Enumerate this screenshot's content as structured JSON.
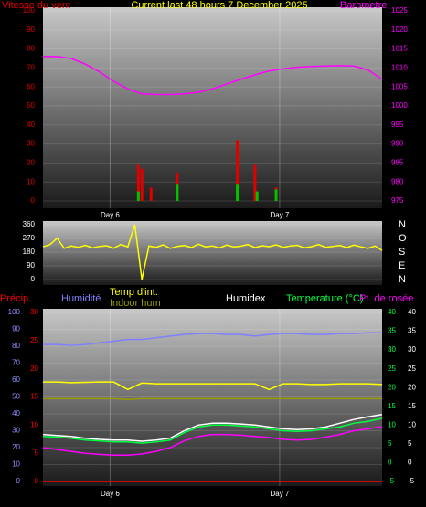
{
  "chart_data": [
    {
      "type": "combo",
      "title": "Current last 48 hours 7 December 2025",
      "y_label": "Vitesse du vent",
      "y2_label": "Barometre",
      "xlim": [
        0,
        48
      ],
      "xticks": [
        {
          "value": 9.5,
          "label": "Day 6"
        },
        {
          "value": 33.5,
          "label": "Day 7"
        }
      ],
      "ylim": [
        0,
        100
      ],
      "yticks": [
        0,
        10,
        20,
        30,
        40,
        50,
        60,
        70,
        80,
        90,
        100
      ],
      "y2lim": [
        975,
        1025
      ],
      "y2ticks": [
        975,
        980,
        985,
        990,
        995,
        1000,
        1005,
        1010,
        1015,
        1020,
        1025
      ],
      "x": [
        0,
        2,
        4,
        6,
        8,
        10,
        12,
        14,
        16,
        18,
        20,
        22,
        24,
        26,
        28,
        30,
        32,
        34,
        36,
        38,
        40,
        42,
        44,
        46,
        48
      ],
      "series": [
        {
          "type": "bar",
          "color": "#e00000",
          "x": [
            13.5,
            14,
            15.3,
            19,
            27.5,
            30,
            33
          ],
          "values": [
            19,
            17,
            7,
            15,
            32,
            19,
            7
          ]
        },
        {
          "type": "bar",
          "color": "#00c000",
          "x": [
            13.5,
            19,
            27.5,
            30.3,
            33
          ],
          "values": [
            5,
            9,
            9,
            5,
            6
          ]
        },
        {
          "type": "line",
          "axis": "y2",
          "color": "#ff00ff",
          "values": [
            1013,
            1013,
            1012.5,
            1011,
            1009,
            1006.5,
            1004.5,
            1003.2,
            1003,
            1003,
            1003.2,
            1003.6,
            1004.5,
            1005.8,
            1007,
            1008.2,
            1009.2,
            1009.8,
            1010.2,
            1010.4,
            1010.5,
            1010.6,
            1010.5,
            1009.5,
            1007
          ]
        }
      ]
    },
    {
      "type": "line",
      "xlim": [
        0,
        48
      ],
      "ylim": [
        0,
        360
      ],
      "yticks": [
        0,
        90,
        180,
        270,
        360
      ],
      "y2lim": [
        0,
        360
      ],
      "y2ticks": [
        {
          "value": 0,
          "label": "N"
        },
        {
          "value": 90,
          "label": "E"
        },
        {
          "value": 180,
          "label": "S"
        },
        {
          "value": 270,
          "label": "O"
        },
        {
          "value": 360,
          "label": "N"
        }
      ],
      "x": [
        0,
        1,
        2,
        3,
        4,
        5,
        6,
        7,
        8,
        9,
        10,
        11,
        12,
        13,
        14,
        15,
        16,
        17,
        18,
        19,
        20,
        21,
        22,
        23,
        24,
        25,
        26,
        27,
        28,
        29,
        30,
        31,
        32,
        33,
        34,
        35,
        36,
        37,
        38,
        39,
        40,
        41,
        42,
        43,
        44,
        45,
        46,
        47,
        48
      ],
      "series": [
        {
          "color": "#ffff00",
          "values": [
            215,
            230,
            272,
            205,
            220,
            212,
            225,
            208,
            218,
            222,
            206,
            230,
            215,
            360,
            0,
            220,
            212,
            228,
            205,
            218,
            224,
            210,
            232,
            215,
            220,
            208,
            226,
            214,
            219,
            230,
            210,
            222,
            216,
            228,
            212,
            220,
            225,
            208,
            216,
            230,
            212,
            218,
            224,
            210,
            226,
            215,
            205,
            220,
            190
          ]
        }
      ]
    },
    {
      "type": "line",
      "xlim": [
        0,
        48
      ],
      "xticks": [
        {
          "value": 9.5,
          "label": "Day 6"
        },
        {
          "value": 33.5,
          "label": "Day 7"
        }
      ],
      "ylim": [
        0,
        100
      ],
      "yticks": [
        0,
        10,
        20,
        30,
        40,
        50,
        60,
        70,
        80,
        90,
        100
      ],
      "y3lim": [
        0,
        30
      ],
      "y3ticks": [
        0,
        5,
        10,
        15,
        20,
        25,
        30
      ],
      "y2lim": [
        -5,
        40
      ],
      "y2ticks": [
        -5,
        0,
        5,
        10,
        15,
        20,
        25,
        30,
        35,
        40
      ],
      "x": [
        0,
        2,
        4,
        6,
        8,
        10,
        12,
        14,
        16,
        18,
        20,
        22,
        24,
        26,
        28,
        30,
        32,
        34,
        36,
        38,
        40,
        42,
        44,
        46,
        48
      ],
      "series": [
        {
          "name": "Précip.",
          "axis": "y3",
          "color": "#ff0000",
          "values": [
            0,
            0,
            0,
            0,
            0,
            0,
            0,
            0,
            0,
            0,
            0,
            0,
            0,
            0,
            0,
            0,
            0,
            0,
            0,
            0,
            0,
            0,
            0,
            0,
            0
          ]
        },
        {
          "name": "Humidité",
          "color": "#8080ff",
          "values": [
            81,
            81,
            80.5,
            81,
            82,
            83,
            84,
            84,
            85,
            86,
            87,
            87.5,
            87.5,
            87,
            87,
            86,
            87,
            87.5,
            87.5,
            87,
            87,
            87.5,
            87.5,
            88,
            88
          ]
        },
        {
          "name": "Temp d'int.",
          "axis": "y2",
          "color": "#ffff00",
          "values": [
            21.5,
            21.5,
            21.3,
            21.4,
            21.5,
            21.5,
            19.5,
            21.2,
            21,
            21,
            21,
            21,
            21,
            21,
            21,
            21,
            19.5,
            21,
            21,
            20.8,
            20.8,
            21,
            21,
            21,
            20.8
          ]
        },
        {
          "name": "Indoor hum",
          "color": "#999900",
          "values": [
            49,
            49,
            49,
            49,
            49,
            49,
            48.5,
            49,
            49,
            49,
            49,
            49,
            49,
            49,
            49,
            49,
            49,
            49,
            49,
            49,
            49,
            49,
            49,
            49,
            49
          ]
        },
        {
          "name": "Humidex",
          "axis": "y2",
          "color": "#ffffff",
          "values": [
            7.5,
            7.2,
            7,
            6.5,
            6.2,
            6,
            6,
            5.7,
            6,
            6.5,
            8.5,
            10,
            10.5,
            10.5,
            10.3,
            10,
            9.5,
            9,
            8.8,
            9,
            9.5,
            10.5,
            11.5,
            12.2,
            12.8
          ]
        },
        {
          "name": "Temperature (°C)",
          "axis": "y2",
          "color": "#00ff40",
          "values": [
            7,
            6.8,
            6.5,
            6,
            5.8,
            5.5,
            5.5,
            5.2,
            5.5,
            6,
            8,
            9.5,
            10,
            10,
            9.8,
            9.5,
            9,
            8.5,
            8.3,
            8.5,
            9,
            9.5,
            10.5,
            11,
            11.8
          ]
        },
        {
          "name": "Pt. de rosée",
          "axis": "y2",
          "color": "#ff00ff",
          "values": [
            4,
            3.5,
            3,
            2.5,
            2.2,
            2,
            2,
            2.3,
            3,
            4,
            5.8,
            7,
            7.5,
            7.5,
            7.3,
            7,
            6.7,
            6.2,
            6,
            6.2,
            6.8,
            7.5,
            8.5,
            9,
            9.6
          ]
        }
      ]
    }
  ]
}
